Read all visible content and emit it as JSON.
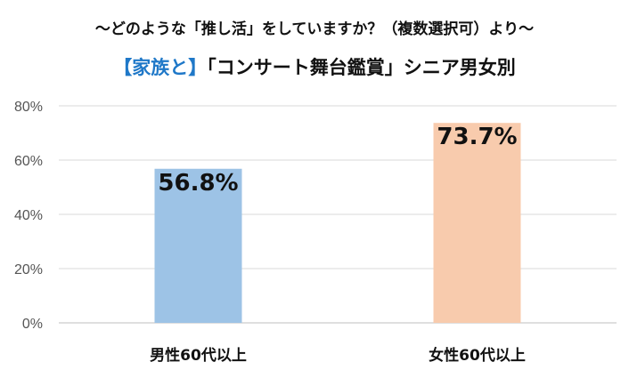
{
  "chart_data": {
    "type": "bar",
    "subtitle": "～どのような「推し活」をしていますか？（複数選択可）より～",
    "title_highlight": "【家族と】",
    "title_rest": "「コンサート舞台鑑賞」シニア男女別",
    "categories": [
      "男性60代以上",
      "女性60代以上"
    ],
    "values": [
      56.8,
      73.7
    ],
    "data_labels": [
      "56.8%",
      "73.7%"
    ],
    "bar_colors": [
      "#9dc3e6",
      "#f8cbad"
    ],
    "ylim": [
      0,
      80
    ],
    "yticks": [
      0,
      20,
      40,
      60,
      80
    ],
    "ytick_labels": [
      "0%",
      "20%",
      "40%",
      "60%",
      "80%"
    ],
    "grid": true,
    "legend": "none"
  }
}
